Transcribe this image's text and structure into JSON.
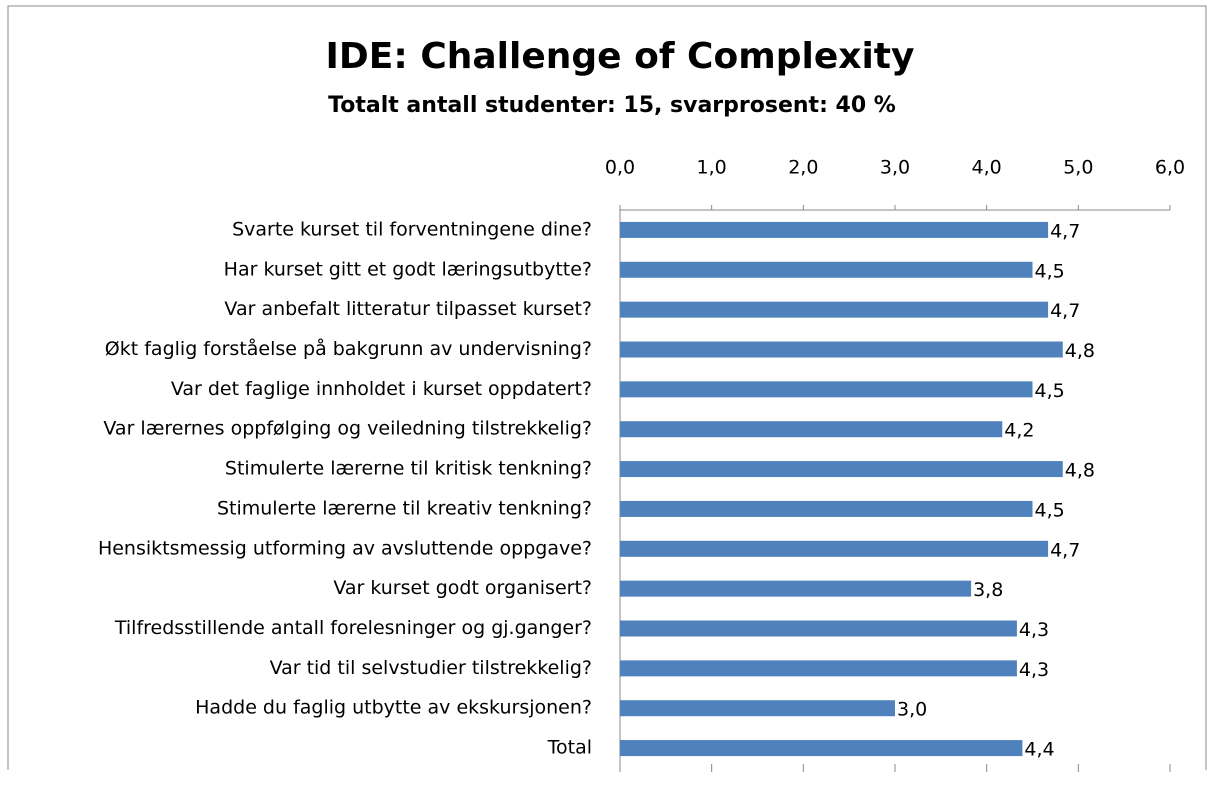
{
  "chart_data": {
    "type": "bar",
    "orientation": "horizontal",
    "title": "IDE: Challenge of Complexity",
    "subtitle": "Totalt antall studenter: 15, svarprosent: 40 %",
    "categories": [
      "Svarte kurset til forventningene dine?",
      "Har kurset gitt et godt læringsutbytte?",
      "Var anbefalt litteratur tilpasset kurset?",
      "Økt faglig forståelse på bakgrunn av undervisning?",
      "Var det faglige innholdet i kurset oppdatert?",
      "Var lærernes oppfølging og veiledning tilstrekkelig?",
      "Stimulerte lærerne til kritisk tenkning?",
      "Stimulerte lærerne til kreativ tenkning?",
      "Hensiktsmessig utforming av avsluttende oppgave?",
      "Var kurset godt organisert?",
      "Tilfredsstillende antall forelesninger og gj.ganger?",
      "Var tid til selvstudier tilstrekkelig?",
      "Hadde du faglig utbytte av ekskursjonen?",
      "Total"
    ],
    "values": [
      4.67,
      4.5,
      4.67,
      4.83,
      4.5,
      4.17,
      4.83,
      4.5,
      4.67,
      3.83,
      4.33,
      4.33,
      3.0,
      4.39
    ],
    "value_labels": [
      "4,7",
      "4,5",
      "4,7",
      "4,8",
      "4,5",
      "4,2",
      "4,8",
      "4,5",
      "4,7",
      "3,8",
      "4,3",
      "4,3",
      "3,0",
      "4,4"
    ],
    "color": "#4f81bd",
    "xlim": [
      0,
      6
    ],
    "xticks": [
      {
        "value": 0,
        "label": "0,0"
      },
      {
        "value": 1,
        "label": "1,0"
      },
      {
        "value": 2,
        "label": "2,0"
      },
      {
        "value": 3,
        "label": "3,0"
      },
      {
        "value": 4,
        "label": "4,0"
      },
      {
        "value": 5,
        "label": "5,0"
      },
      {
        "value": 6,
        "label": "6,0"
      }
    ]
  }
}
